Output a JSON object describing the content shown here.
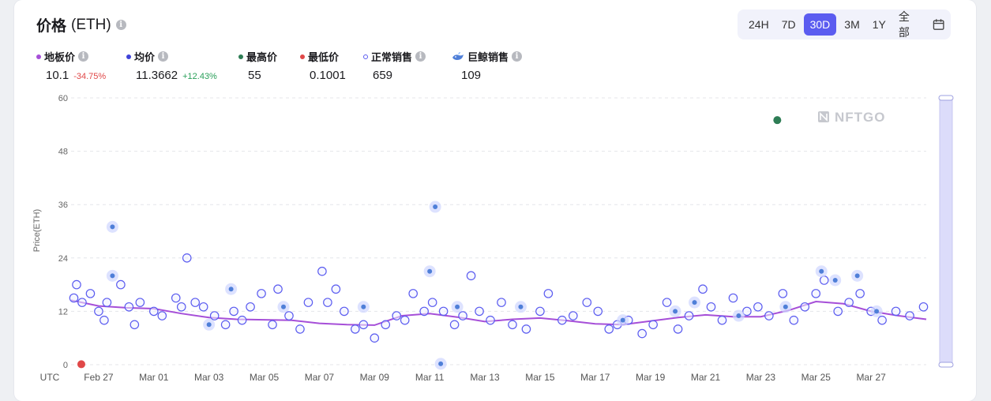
{
  "header": {
    "title": "价格",
    "title_unit": "(ETH)",
    "info_icon": "info-icon"
  },
  "range_selector": {
    "options": [
      "24H",
      "7D",
      "30D",
      "3M",
      "1Y",
      "全部"
    ],
    "active": "30D",
    "calendar_icon": "calendar-icon"
  },
  "stats": {
    "floor": {
      "label": "地板价",
      "value": "10.1",
      "change": "-34.75%",
      "color": "#a64fd8"
    },
    "avg": {
      "label": "均价",
      "value": "11.3662",
      "change": "+12.43%",
      "color": "#3f43d8"
    },
    "high": {
      "label": "最高价",
      "value": "55",
      "color": "#2e7d55"
    },
    "low": {
      "label": "最低价",
      "value": "0.1001",
      "color": "#e04848"
    },
    "normal": {
      "label": "正常销售",
      "value": "659",
      "color": "#5b5cf0"
    },
    "whale": {
      "label": "巨鲸销售",
      "value": "109",
      "icon": "whale-icon"
    }
  },
  "watermark": "NFTGO",
  "chart_data": {
    "type": "scatter",
    "ylabel": "Price(ETH)",
    "ylim": [
      0,
      60
    ],
    "yticks": [
      0,
      12,
      24,
      36,
      48,
      60
    ],
    "xlim": [
      "Feb 26",
      "Mar 28"
    ],
    "xtick_labels": [
      "UTC",
      "Feb 27",
      "Mar 01",
      "Mar 03",
      "Mar 05",
      "Mar 07",
      "Mar 09",
      "Mar 11",
      "Mar 13",
      "Mar 15",
      "Mar 17",
      "Mar 19",
      "Mar 21",
      "Mar 23",
      "Mar 25",
      "Mar 27"
    ],
    "grid": true,
    "highest_sale": {
      "day": 25.6,
      "price": 55,
      "color": "#2e7d55"
    },
    "lowest_sale": {
      "day": 0.2,
      "price": 0.1001,
      "color": "#e04848"
    },
    "series": [
      {
        "name": "均价",
        "type": "line",
        "color": "#a64fd8",
        "points": [
          [
            0,
            14.5
          ],
          [
            1,
            13.2
          ],
          [
            2,
            12.8
          ],
          [
            3,
            12.6
          ],
          [
            4,
            11.5
          ],
          [
            5,
            10.6
          ],
          [
            6,
            10.2
          ],
          [
            7,
            10.1
          ],
          [
            8,
            10.0
          ],
          [
            9,
            9.3
          ],
          [
            10,
            9.0
          ],
          [
            11,
            8.9
          ],
          [
            12,
            11.0
          ],
          [
            13,
            11.5
          ],
          [
            14,
            10.7
          ],
          [
            15,
            9.7
          ],
          [
            16,
            10.2
          ],
          [
            17,
            10.5
          ],
          [
            18,
            9.9
          ],
          [
            19,
            9.2
          ],
          [
            20,
            9.0
          ],
          [
            21,
            9.8
          ],
          [
            22,
            10.6
          ],
          [
            23,
            11.2
          ],
          [
            24,
            10.8
          ],
          [
            25,
            10.8
          ],
          [
            26,
            12.2
          ],
          [
            27,
            14.2
          ],
          [
            28,
            13.7
          ],
          [
            29,
            12.0
          ],
          [
            30,
            11.0
          ],
          [
            31,
            10.2
          ]
        ]
      },
      {
        "name": "正常销售",
        "type": "scatter",
        "color": "#5b5cf0",
        "points": [
          [
            0.1,
            15
          ],
          [
            0.2,
            18
          ],
          [
            0.4,
            14
          ],
          [
            0.7,
            16
          ],
          [
            1.0,
            12
          ],
          [
            1.2,
            10
          ],
          [
            1.3,
            14
          ],
          [
            1.8,
            18
          ],
          [
            2.1,
            13
          ],
          [
            2.3,
            9
          ],
          [
            2.5,
            14
          ],
          [
            3.0,
            12
          ],
          [
            3.3,
            11
          ],
          [
            3.8,
            15
          ],
          [
            4.0,
            13
          ],
          [
            4.2,
            24
          ],
          [
            4.5,
            14
          ],
          [
            4.8,
            13
          ],
          [
            5.2,
            11
          ],
          [
            5.6,
            9
          ],
          [
            5.9,
            12
          ],
          [
            6.2,
            10
          ],
          [
            6.5,
            13
          ],
          [
            6.9,
            16
          ],
          [
            7.3,
            9
          ],
          [
            7.5,
            17
          ],
          [
            7.9,
            11
          ],
          [
            8.3,
            8
          ],
          [
            8.6,
            14
          ],
          [
            9.1,
            21
          ],
          [
            9.3,
            14
          ],
          [
            9.6,
            17
          ],
          [
            9.9,
            12
          ],
          [
            10.3,
            8
          ],
          [
            10.6,
            9
          ],
          [
            11.0,
            6
          ],
          [
            11.4,
            9
          ],
          [
            11.8,
            11
          ],
          [
            12.1,
            10
          ],
          [
            12.4,
            16
          ],
          [
            12.8,
            12
          ],
          [
            13.1,
            14
          ],
          [
            13.5,
            12
          ],
          [
            13.9,
            9
          ],
          [
            14.2,
            11
          ],
          [
            14.5,
            20
          ],
          [
            14.8,
            12
          ],
          [
            15.2,
            10
          ],
          [
            15.6,
            14
          ],
          [
            16.0,
            9
          ],
          [
            16.5,
            8
          ],
          [
            17.0,
            12
          ],
          [
            17.3,
            16
          ],
          [
            17.8,
            10
          ],
          [
            18.2,
            11
          ],
          [
            18.7,
            14
          ],
          [
            19.1,
            12
          ],
          [
            19.5,
            8
          ],
          [
            19.8,
            9
          ],
          [
            20.2,
            10
          ],
          [
            20.7,
            7
          ],
          [
            21.1,
            9
          ],
          [
            21.6,
            14
          ],
          [
            22.0,
            8
          ],
          [
            22.4,
            11
          ],
          [
            22.9,
            17
          ],
          [
            23.2,
            13
          ],
          [
            23.6,
            10
          ],
          [
            24.0,
            15
          ],
          [
            24.5,
            12
          ],
          [
            24.9,
            13
          ],
          [
            25.3,
            11
          ],
          [
            25.8,
            16
          ],
          [
            26.2,
            10
          ],
          [
            26.6,
            13
          ],
          [
            27.0,
            16
          ],
          [
            27.3,
            19
          ],
          [
            27.8,
            12
          ],
          [
            28.2,
            14
          ],
          [
            28.6,
            16
          ],
          [
            29.0,
            12
          ],
          [
            29.4,
            10
          ],
          [
            29.9,
            12
          ],
          [
            30.4,
            11
          ],
          [
            30.9,
            13
          ]
        ]
      },
      {
        "name": "巨鲸销售",
        "type": "scatter",
        "color": "#9aa6ff",
        "points": [
          [
            1.5,
            31
          ],
          [
            1.5,
            20
          ],
          [
            5.0,
            9
          ],
          [
            5.8,
            17
          ],
          [
            7.7,
            13
          ],
          [
            10.6,
            13
          ],
          [
            13.0,
            21
          ],
          [
            13.2,
            35.5
          ],
          [
            13.4,
            0.2
          ],
          [
            14.0,
            13
          ],
          [
            16.3,
            13
          ],
          [
            20.0,
            10
          ],
          [
            21.9,
            12
          ],
          [
            22.6,
            14
          ],
          [
            24.2,
            11
          ],
          [
            25.9,
            13
          ],
          [
            27.2,
            21
          ],
          [
            27.7,
            19
          ],
          [
            28.5,
            20
          ],
          [
            29.2,
            12
          ]
        ]
      }
    ]
  }
}
